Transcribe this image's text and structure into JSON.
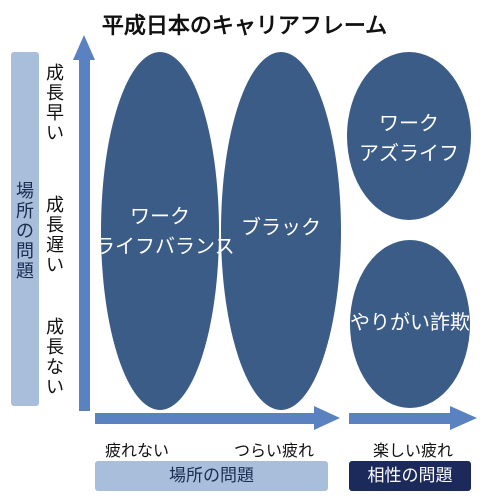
{
  "title": "平成日本のキャリアフレーム",
  "y_axis": {
    "category": "場所の問題",
    "levels": [
      "成長早い",
      "成長遅い",
      "成長ない"
    ]
  },
  "x_axis": {
    "levels": [
      "疲れない",
      "つらい疲れ",
      "楽しい疲れ"
    ],
    "groups": [
      "場所の問題",
      "相性の問題"
    ]
  },
  "regions": [
    {
      "label": "ワーク\nライフバランス"
    },
    {
      "label": "ブラック"
    },
    {
      "label": "ワーク\nアズライフ"
    },
    {
      "label": "やりがい詐欺"
    }
  ],
  "colors": {
    "ellipse": "#3b5c87",
    "arrow": "#5a82c0",
    "band_light": "#a8bedb",
    "band_dark": "#1b2a5a"
  }
}
